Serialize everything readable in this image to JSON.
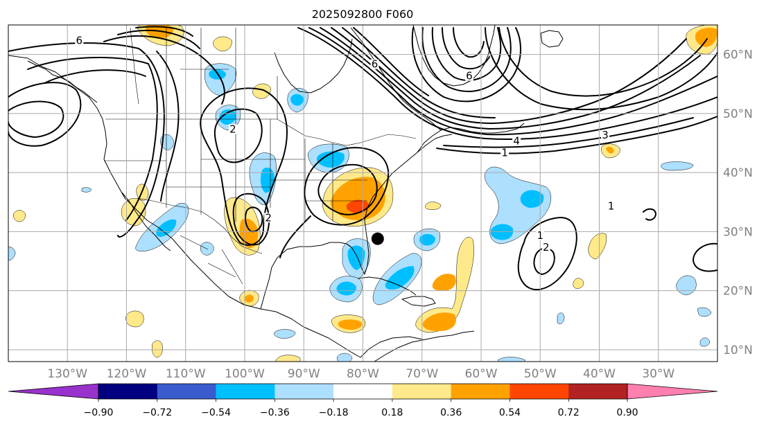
{
  "title": "2025092800 F060",
  "map": {
    "lon_range": [
      -140,
      -20
    ],
    "lat_range": [
      8,
      65
    ],
    "lon_ticks": [
      {
        "lon": -130,
        "label": "130°W"
      },
      {
        "lon": -120,
        "label": "120°W"
      },
      {
        "lon": -110,
        "label": "110°W"
      },
      {
        "lon": -100,
        "label": "100°W"
      },
      {
        "lon": -90,
        "label": "90°W"
      },
      {
        "lon": -80,
        "label": "80°W"
      },
      {
        "lon": -70,
        "label": "70°W"
      },
      {
        "lon": -60,
        "label": "60°W"
      },
      {
        "lon": -50,
        "label": "50°W"
      },
      {
        "lon": -40,
        "label": "40°W"
      },
      {
        "lon": -30,
        "label": "30°W"
      }
    ],
    "lat_ticks": [
      {
        "lat": 60,
        "label": "60°N"
      },
      {
        "lat": 50,
        "label": "50°N"
      },
      {
        "lat": 40,
        "label": "40°N"
      },
      {
        "lat": 30,
        "label": "30°N"
      },
      {
        "lat": 20,
        "label": "20°N"
      },
      {
        "lat": 10,
        "label": "10°N"
      }
    ],
    "grid": true,
    "marker": {
      "lon": -77.5,
      "lat": 28.8,
      "symbol": "filled-circle",
      "color": "#000000"
    },
    "contour_labels": [
      {
        "text": "6",
        "lon": -128,
        "lat": 62
      },
      {
        "text": "2",
        "lon": -102,
        "lat": 47
      },
      {
        "text": "2",
        "lon": -96,
        "lat": 32
      },
      {
        "text": "6",
        "lon": -78,
        "lat": 58
      },
      {
        "text": "6",
        "lon": -62,
        "lat": 56
      },
      {
        "text": "1",
        "lon": -56,
        "lat": 43
      },
      {
        "text": "4",
        "lon": -54,
        "lat": 45
      },
      {
        "text": "3",
        "lon": -39,
        "lat": 46
      },
      {
        "text": "1",
        "lon": -38,
        "lat": 34
      },
      {
        "text": "1",
        "lon": -50,
        "lat": 29
      },
      {
        "text": "2",
        "lon": -49,
        "lat": 27
      }
    ]
  },
  "colorbar": {
    "colors": [
      "#9932CC",
      "#000080",
      "#3A5BCE",
      "#00BFFF",
      "#ADDFFF",
      "#FFFFFF",
      "#FFE98A",
      "#FFA200",
      "#FF4500",
      "#B22222",
      "#FF80AF"
    ],
    "labels": [
      "−0.90",
      "−0.72",
      "−0.54",
      "−0.36",
      "−0.18",
      "0.18",
      "0.36",
      "0.54",
      "0.72",
      "0.90"
    ],
    "extend": "both"
  },
  "shading": [
    {
      "level": "0.18",
      "color": "#FFE98A"
    },
    {
      "level": "0.36",
      "color": "#FFA200"
    },
    {
      "level": "0.54",
      "color": "#FF4500"
    },
    {
      "level": "-0.18",
      "color": "#ADDFFF"
    },
    {
      "level": "-0.36",
      "color": "#00BFFF"
    }
  ]
}
